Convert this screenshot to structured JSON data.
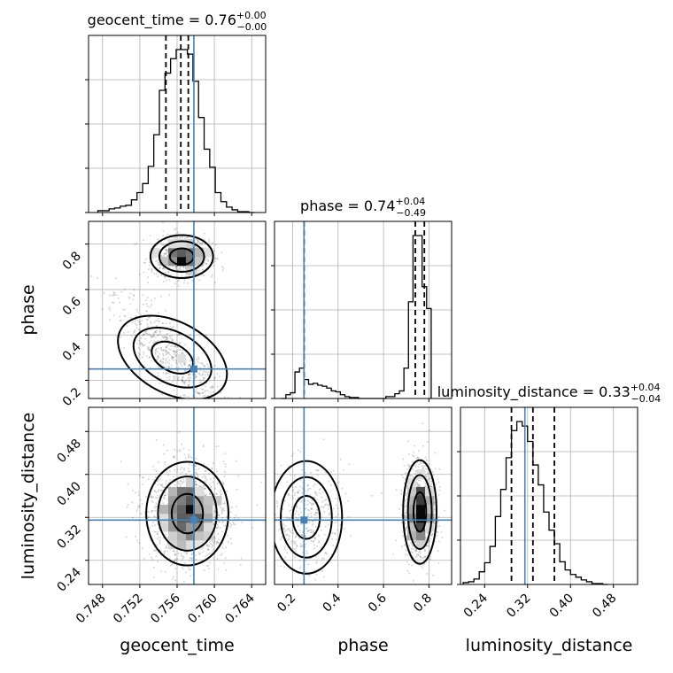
{
  "chart_data": {
    "type": "corner",
    "parameters": [
      "geocent_time",
      "phase",
      "luminosity_distance"
    ],
    "truths": {
      "geocent_time": 0.7578,
      "phase": 0.25,
      "luminosity_distance": 0.315
    },
    "axes": {
      "geocent_time": {
        "range": [
          0.7465,
          0.7655
        ],
        "ticks": [
          0.748,
          0.752,
          0.756,
          0.76,
          0.764
        ],
        "tick_labels": [
          "0.748",
          "0.752",
          "0.756",
          "0.760",
          "0.764"
        ]
      },
      "phase": {
        "range": [
          0.12,
          0.9
        ],
        "ticks": [
          0.2,
          0.4,
          0.6,
          0.8
        ],
        "tick_labels": [
          "0.2",
          "0.4",
          "0.6",
          "0.8"
        ]
      },
      "luminosity_distance": {
        "range": [
          0.195,
          0.525
        ],
        "ticks": [
          0.24,
          0.32,
          0.4,
          0.48
        ],
        "tick_labels": [
          "0.24",
          "0.32",
          "0.40",
          "0.48"
        ]
      }
    },
    "titles": [
      {
        "param": "geocent_time",
        "prefix": "geocent_time = 0.76",
        "plus": "+0.00",
        "minus": "−0.00"
      },
      {
        "param": "phase",
        "prefix": "phase = 0.74",
        "plus": "+0.04",
        "minus": "−0.49"
      },
      {
        "param": "luminosity_distance",
        "prefix": "luminosity_distance = 0.33",
        "plus": "+0.04",
        "minus": "−0.04"
      }
    ],
    "quantiles": {
      "geocent_time": [
        0.7548,
        0.7564,
        0.7572
      ],
      "phase": [
        0.25,
        0.74,
        0.78
      ],
      "luminosity_distance": [
        0.29,
        0.33,
        0.37
      ]
    },
    "histograms": {
      "geocent_time": {
        "edges": [
          0.7475,
          0.7481,
          0.7487,
          0.7493,
          0.7499,
          0.7505,
          0.7511,
          0.7517,
          0.7523,
          0.7529,
          0.7535,
          0.7541,
          0.7547,
          0.7553,
          0.7559,
          0.7565,
          0.7571,
          0.7577,
          0.7583,
          0.7589,
          0.7595,
          0.7601,
          0.7607,
          0.7613,
          0.7619,
          0.7625,
          0.7631,
          0.7637,
          0.7643
        ],
        "counts": [
          2,
          2,
          4,
          5,
          7,
          8,
          14,
          22,
          32,
          51,
          86,
          135,
          154,
          170,
          180,
          180,
          175,
          145,
          105,
          70,
          50,
          22,
          12,
          6,
          3,
          1,
          1,
          0
        ]
      },
      "phase": {
        "edges": [
          0.15,
          0.17,
          0.19,
          0.21,
          0.23,
          0.25,
          0.27,
          0.29,
          0.31,
          0.33,
          0.35,
          0.37,
          0.39,
          0.41,
          0.43,
          0.45,
          0.47,
          0.49,
          0.51,
          0.53,
          0.55,
          0.57,
          0.59,
          0.61,
          0.63,
          0.65,
          0.67,
          0.69,
          0.71,
          0.73,
          0.75,
          0.77,
          0.79,
          0.81
        ],
        "counts": [
          0,
          4,
          6,
          28,
          32,
          20,
          15,
          16,
          14,
          13,
          11,
          8,
          7,
          4,
          2,
          1,
          1,
          0,
          0,
          0,
          0,
          0,
          0,
          2,
          2,
          5,
          8,
          32,
          102,
          172,
          172,
          118,
          95
        ]
      },
      "luminosity_distance": {
        "edges": [
          0.2,
          0.21,
          0.22,
          0.23,
          0.24,
          0.25,
          0.26,
          0.27,
          0.28,
          0.29,
          0.3,
          0.31,
          0.32,
          0.33,
          0.34,
          0.35,
          0.36,
          0.37,
          0.38,
          0.39,
          0.4,
          0.41,
          0.42,
          0.43,
          0.44,
          0.45,
          0.46,
          0.47
        ],
        "counts": [
          2,
          3,
          6,
          14,
          24,
          42,
          75,
          105,
          140,
          170,
          180,
          175,
          158,
          132,
          110,
          80,
          60,
          45,
          25,
          16,
          11,
          8,
          5,
          3,
          1,
          1,
          0
        ]
      }
    },
    "grid": true,
    "truth_color": "#4682b4"
  }
}
